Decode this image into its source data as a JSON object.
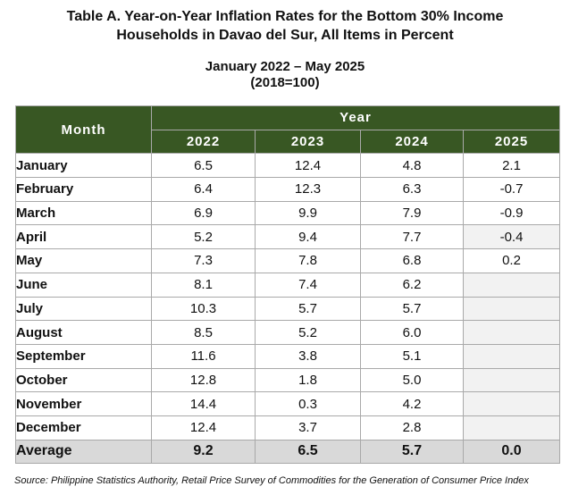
{
  "title_line1": "Table A. Year-on-Year Inflation Rates for the Bottom 30% Income",
  "title_line2": "Households in Davao del Sur, All Items in Percent",
  "subtitle_line1": "January 2022 – May 2025",
  "subtitle_line2": "(2018=100)",
  "header": {
    "month": "Month",
    "year": "Year",
    "years": [
      "2022",
      "2023",
      "2024",
      "2025"
    ]
  },
  "rows": [
    {
      "month": "January",
      "v2022": "6.5",
      "v2023": "12.4",
      "v2024": "4.8",
      "v2025": "2.1"
    },
    {
      "month": "February",
      "v2022": "6.4",
      "v2023": "12.3",
      "v2024": "6.3",
      "v2025": "-0.7"
    },
    {
      "month": "March",
      "v2022": "6.9",
      "v2023": "9.9",
      "v2024": "7.9",
      "v2025": "-0.9"
    },
    {
      "month": "April",
      "v2022": "5.2",
      "v2023": "9.4",
      "v2024": "7.7",
      "v2025": "-0.4"
    },
    {
      "month": "May",
      "v2022": "7.3",
      "v2023": "7.8",
      "v2024": "6.8",
      "v2025": "0.2"
    },
    {
      "month": "June",
      "v2022": "8.1",
      "v2023": "7.4",
      "v2024": "6.2",
      "v2025": ""
    },
    {
      "month": "July",
      "v2022": "10.3",
      "v2023": "5.7",
      "v2024": "5.7",
      "v2025": ""
    },
    {
      "month": "August",
      "v2022": "8.5",
      "v2023": "5.2",
      "v2024": "6.0",
      "v2025": ""
    },
    {
      "month": "September",
      "v2022": "11.6",
      "v2023": "3.8",
      "v2024": "5.1",
      "v2025": ""
    },
    {
      "month": "October",
      "v2022": "12.8",
      "v2023": "1.8",
      "v2024": "5.0",
      "v2025": ""
    },
    {
      "month": "November",
      "v2022": "14.4",
      "v2023": "0.3",
      "v2024": "4.2",
      "v2025": ""
    },
    {
      "month": "December",
      "v2022": "12.4",
      "v2023": "3.7",
      "v2024": "2.8",
      "v2025": ""
    }
  ],
  "average": {
    "label": "Average",
    "v2022": "9.2",
    "v2023": "6.5",
    "v2024": "5.7",
    "v2025": "0.0"
  },
  "source": "Source: Philippine Statistics Authority, Retail Price Survey of Commodities for the Generation of Consumer Price Index",
  "colors": {
    "header_bg": "#385723",
    "header_text": "#ffffff",
    "average_bg": "#d9d9d9",
    "empty_cell_bg": "#f2f2f2"
  }
}
